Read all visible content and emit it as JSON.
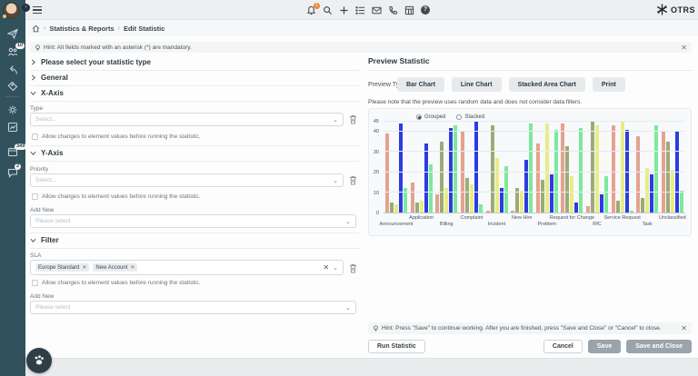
{
  "sidebar": {
    "badges": {
      "org": "10",
      "calendar": "349",
      "chat": "2"
    }
  },
  "topbar": {
    "bell_badge": "1",
    "logo_text": "OTRS"
  },
  "breadcrumb": {
    "items": [
      "Statistics & Reports",
      "Edit Statistic"
    ]
  },
  "hint_top": {
    "text": "Hint: All fields marked with an asterisk (*) are mandatory."
  },
  "form": {
    "sections": {
      "statistic_type": "Please select your statistic type",
      "general": "General",
      "x_axis": "X-Axis",
      "y_axis": "Y-Axis",
      "filter": "Filter"
    },
    "allow_changes_label": "Allow changes to element values before running the statistic.",
    "add_new_label": "Add New",
    "x_axis": {
      "type_label": "Type",
      "select_placeholder": "Select..."
    },
    "y_axis": {
      "priority_label": "Priority",
      "select_placeholder": "Select...",
      "add_new_placeholder": "Please select"
    },
    "filter": {
      "sla_label": "SLA",
      "chips": [
        "Europe Standard",
        "New Account"
      ],
      "add_new_placeholder": "Please select"
    }
  },
  "preview": {
    "title": "Preview Statistic",
    "type_label": "Preview Type",
    "buttons": [
      "Bar Chart",
      "Line Chart",
      "Stacked Area Chart",
      "Print"
    ],
    "note": "Please note that the preview uses random data and does not consider data filters."
  },
  "chart_data": {
    "type": "bar",
    "mode_options": [
      "Grouped",
      "Stacked"
    ],
    "selected_mode": "Grouped",
    "categories": [
      "Announcement",
      "Application",
      "Billing",
      "Complaint",
      "Incident",
      "New Hire",
      "Problem",
      "Request for Change",
      "RfC",
      "Service Request",
      "Task",
      "Unclassified"
    ],
    "series": [
      {
        "color": "#e5a28e",
        "values": [
          39,
          15,
          9,
          40,
          1,
          1,
          34,
          44,
          3,
          43,
          38,
          40
        ]
      },
      {
        "color": "#9cab76",
        "values": [
          5,
          5,
          35,
          17,
          43,
          12,
          16,
          33,
          45,
          6,
          7,
          35
        ]
      },
      {
        "color": "#e9ec83",
        "values": [
          4,
          6,
          12,
          14,
          27,
          11,
          44,
          18,
          43,
          45,
          22,
          21
        ]
      },
      {
        "color": "#2c3ce2",
        "values": [
          44,
          34,
          42,
          45,
          12,
          26,
          19,
          5,
          9,
          41,
          19,
          40
        ]
      },
      {
        "color": "#7de99c",
        "values": [
          12,
          24,
          43,
          4,
          23,
          44,
          41,
          42,
          18,
          1,
          43,
          11
        ]
      }
    ],
    "ylim": [
      0,
      45
    ],
    "yticks": [
      0,
      10,
      20,
      30,
      40,
      45
    ],
    "grid": true,
    "legend_position": "top"
  },
  "footer": {
    "hint": "Hint: Press \"Save\" to continue working. After you are finished, press \"Save and Close\" or \"Cancel\" to close.",
    "run_statistic": "Run Statistic",
    "cancel": "Cancel",
    "save": "Save",
    "save_and_close": "Save and Close"
  }
}
